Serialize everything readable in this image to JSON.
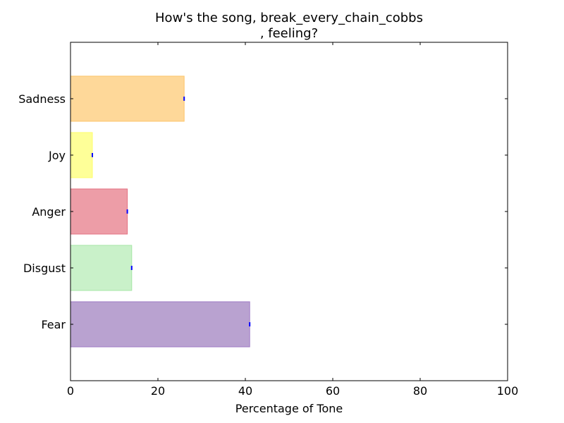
{
  "chart_data": {
    "type": "bar",
    "orientation": "horizontal",
    "title_line1": "How's the song, break_every_chain_cobbs",
    "title_line2": ", feeling?",
    "xlabel": "Percentage of Tone",
    "ylabel": "",
    "xlim": [
      0,
      100
    ],
    "x_ticks": [
      "0",
      "20",
      "40",
      "60",
      "80",
      "100"
    ],
    "categories": [
      "Fear",
      "Disgust",
      "Anger",
      "Joy",
      "Sadness"
    ],
    "values": [
      41,
      14,
      13,
      5,
      26
    ],
    "colors": [
      "#b9a2d0",
      "#c9f1c9",
      "#ed9da7",
      "#feff98",
      "#fed899"
    ],
    "edge_colors": [
      "#a07cc6",
      "#a6e6a6",
      "#e47283",
      "#fdfd6a",
      "#fcc46a"
    ],
    "error_marker_color": "#0000ff",
    "grid": false,
    "legend": "none"
  }
}
